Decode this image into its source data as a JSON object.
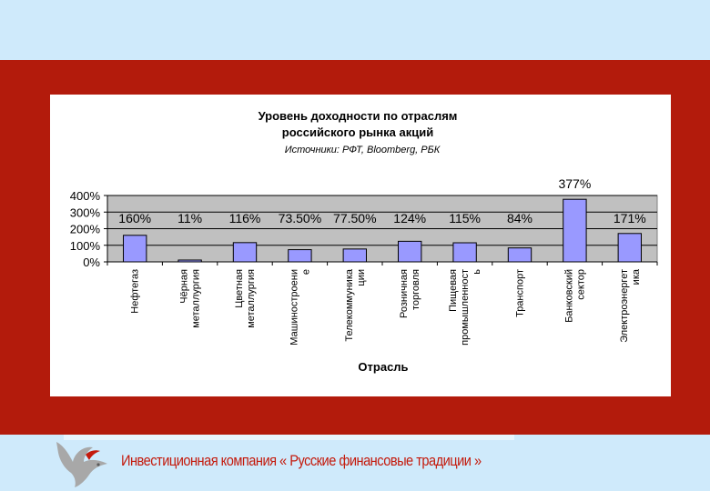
{
  "footer": {
    "company": "Инвестиционная компания « Русские финансовые традиции »"
  },
  "colors": {
    "frame": "#b31b0c",
    "background": "#cfeafb",
    "plot_area": "#c0c0c0",
    "bar_fill": "#9999ff",
    "footer_text": "#c41a0c"
  },
  "chart_data": {
    "type": "bar",
    "title_line1": "Уровень доходности по отраслям",
    "title_line2": "российского рынка акций",
    "source": "Источники: РФТ, Bloomberg, РБК",
    "xlabel": "Отрасль",
    "ylabel": "",
    "ylim": [
      0,
      400
    ],
    "yticks": [
      "400%",
      "300%",
      "200%",
      "100%",
      "0%"
    ],
    "ytick_values": [
      400,
      300,
      200,
      100,
      0
    ],
    "categories": [
      [
        "Нефтегаз"
      ],
      [
        "Чёрная",
        "металлургия"
      ],
      [
        "Цветная",
        "металлургия"
      ],
      [
        "Машиностроени",
        "е"
      ],
      [
        "Телекоммуника",
        "ции"
      ],
      [
        "Розничная",
        "торговля"
      ],
      [
        "Пищевая",
        "промышленност",
        "ь"
      ],
      [
        "Транспорт"
      ],
      [
        "Банковский",
        "сектор"
      ],
      [
        "Электроэнергет",
        "ика"
      ]
    ],
    "values": [
      160,
      11,
      116,
      73.5,
      77.5,
      124,
      115,
      84,
      377,
      171
    ],
    "labels": [
      "160%",
      "11%",
      "116%",
      "73.50%",
      "77.50%",
      "124%",
      "115%",
      "84%",
      "377%",
      "171%"
    ],
    "grid": true,
    "legend": "none"
  }
}
